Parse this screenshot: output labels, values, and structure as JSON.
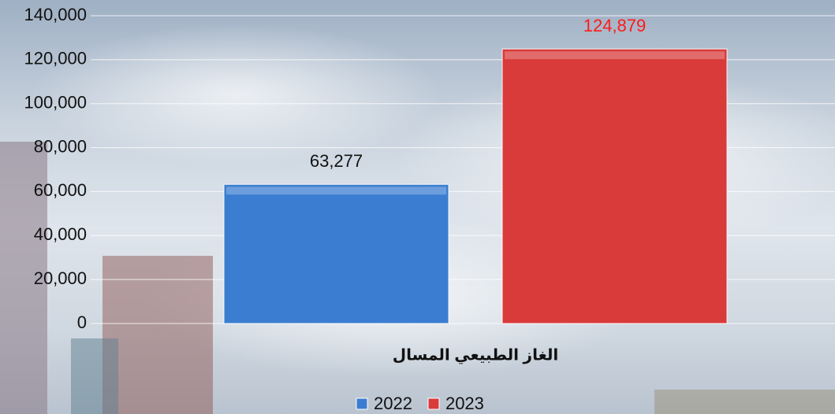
{
  "chart_data": {
    "type": "bar",
    "categories": [
      "الغاز الطبيعي المسال"
    ],
    "series": [
      {
        "name": "2022",
        "color": "#3b7dd0",
        "values": [
          63277
        ],
        "value_labels": [
          "63,277"
        ],
        "label_color": "#111111"
      },
      {
        "name": "2023",
        "color": "#d93a3a",
        "values": [
          124879
        ],
        "value_labels": [
          "124,879"
        ],
        "label_color": "#ff1a1a"
      }
    ],
    "ylim": [
      0,
      140000
    ],
    "yticks": [
      0,
      {
        "value": 20000,
        "label": "20,000"
      },
      {
        "value": 40000,
        "label": "40,000"
      },
      {
        "value": 60000,
        "label": "60,000"
      },
      {
        "value": 80000,
        "label": "80,000"
      },
      {
        "value": 100000,
        "label": "100,000"
      },
      {
        "value": 120000,
        "label": "120,000"
      },
      {
        "value": 140000,
        "label": "140,000"
      }
    ],
    "grid": true,
    "legend": "bottom"
  }
}
